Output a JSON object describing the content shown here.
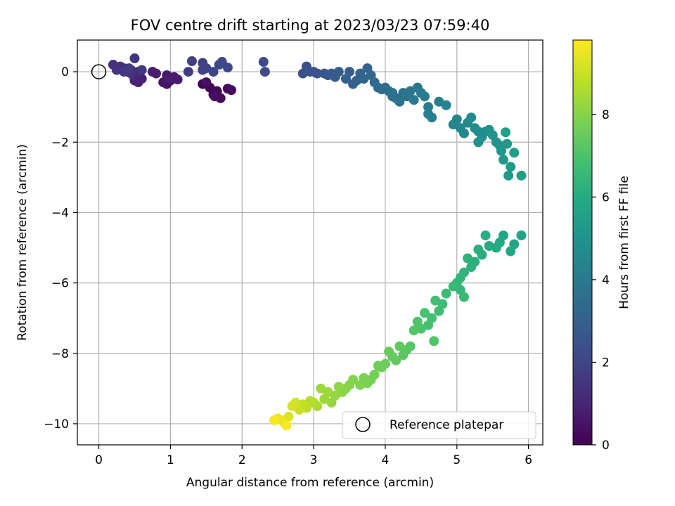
{
  "chart_data": {
    "type": "scatter",
    "title": "FOV centre drift starting at 2023/03/23 07:59:40",
    "xlabel": "Angular distance from reference (arcmin)",
    "ylabel": "Rotation from reference (arcmin)",
    "xlim": [
      -0.3,
      6.2
    ],
    "ylim": [
      -10.6,
      0.9
    ],
    "xticks": [
      "0",
      "1",
      "2",
      "3",
      "4",
      "5",
      "6"
    ],
    "yticks": [
      "0",
      "−2",
      "−4",
      "−6",
      "−8",
      "−10"
    ],
    "grid": true,
    "legend": {
      "position": "lower-right",
      "entries": [
        "Reference platepar"
      ]
    },
    "reference_point": {
      "x": 0,
      "y": 0
    },
    "colorbar": {
      "label": "Hours from first FF file",
      "range": [
        0,
        9.8
      ],
      "ticks": [
        "0",
        "2",
        "4",
        "6",
        "8"
      ],
      "colormap": "viridis"
    },
    "series": [
      {
        "color_by": "hours",
        "points": [
          [
            1.45,
            -0.35,
            0.0
          ],
          [
            1.55,
            -0.45,
            0.05
          ],
          [
            1.6,
            -0.65,
            0.1
          ],
          [
            1.7,
            -0.75,
            0.15
          ],
          [
            1.65,
            -0.55,
            0.2
          ],
          [
            1.8,
            -0.48,
            0.25
          ],
          [
            1.85,
            -0.52,
            0.3
          ],
          [
            1.5,
            -0.3,
            0.35
          ],
          [
            1.62,
            -0.7,
            0.4
          ],
          [
            0.95,
            -0.35,
            0.45
          ],
          [
            1.0,
            -0.25,
            0.5
          ],
          [
            0.9,
            -0.3,
            0.55
          ],
          [
            1.05,
            -0.15,
            0.6
          ],
          [
            0.95,
            -0.1,
            0.65
          ],
          [
            1.1,
            -0.22,
            0.7
          ],
          [
            0.98,
            -0.2,
            0.75
          ],
          [
            0.75,
            0.0,
            0.8
          ],
          [
            0.8,
            -0.05,
            0.85
          ],
          [
            0.55,
            -0.3,
            0.9
          ],
          [
            0.6,
            -0.2,
            0.95
          ],
          [
            0.5,
            -0.25,
            1.0
          ],
          [
            0.48,
            -0.1,
            1.05
          ],
          [
            0.55,
            0.0,
            1.1
          ],
          [
            0.45,
            0.05,
            1.15
          ],
          [
            0.4,
            0.0,
            1.2
          ],
          [
            0.35,
            0.1,
            1.25
          ],
          [
            0.3,
            0.15,
            1.3
          ],
          [
            0.2,
            0.2,
            1.35
          ],
          [
            0.25,
            0.05,
            1.4
          ],
          [
            0.45,
            -0.05,
            1.45
          ],
          [
            0.5,
            0.38,
            1.5
          ],
          [
            0.35,
            0.0,
            1.55
          ],
          [
            0.6,
            0.05,
            1.6
          ],
          [
            0.42,
            0.1,
            1.65
          ],
          [
            1.25,
            0.0,
            1.7
          ],
          [
            1.3,
            0.3,
            1.8
          ],
          [
            1.45,
            0.25,
            1.85
          ],
          [
            1.5,
            0.1,
            1.9
          ],
          [
            1.45,
            0.05,
            1.95
          ],
          [
            1.6,
            0.0,
            2.0
          ],
          [
            1.72,
            0.28,
            2.05
          ],
          [
            1.8,
            0.12,
            2.1
          ],
          [
            1.68,
            0.2,
            2.15
          ],
          [
            2.3,
            0.28,
            2.2
          ],
          [
            2.32,
            0.0,
            2.25
          ],
          [
            2.9,
            0.15,
            2.4
          ],
          [
            2.85,
            -0.05,
            2.45
          ],
          [
            2.95,
            0.0,
            2.5
          ],
          [
            3.0,
            0.0,
            2.55
          ],
          [
            3.05,
            -0.05,
            2.6
          ],
          [
            3.15,
            -0.05,
            2.65
          ],
          [
            3.2,
            -0.1,
            2.7
          ],
          [
            3.25,
            -0.05,
            2.75
          ],
          [
            3.3,
            -0.15,
            2.8
          ],
          [
            3.35,
            0.0,
            2.85
          ],
          [
            3.5,
            0.0,
            2.9
          ],
          [
            3.45,
            -0.2,
            2.95
          ],
          [
            3.55,
            -0.35,
            3.0
          ],
          [
            3.6,
            -0.25,
            3.05
          ],
          [
            3.65,
            -0.05,
            3.1
          ],
          [
            3.75,
            0.1,
            3.15
          ],
          [
            3.8,
            -0.1,
            3.2
          ],
          [
            3.7,
            -0.2,
            3.25
          ],
          [
            3.85,
            -0.3,
            3.3
          ],
          [
            3.9,
            -0.45,
            3.35
          ],
          [
            3.95,
            -0.5,
            3.4
          ],
          [
            4.0,
            -0.45,
            3.45
          ],
          [
            4.05,
            -0.55,
            3.5
          ],
          [
            4.1,
            -0.7,
            3.55
          ],
          [
            4.15,
            -0.75,
            3.6
          ],
          [
            4.2,
            -0.85,
            3.65
          ],
          [
            4.1,
            -0.6,
            3.7
          ],
          [
            4.25,
            -0.6,
            3.75
          ],
          [
            4.3,
            -0.7,
            3.8
          ],
          [
            4.35,
            -0.55,
            3.85
          ],
          [
            4.45,
            -0.45,
            3.9
          ],
          [
            4.5,
            -0.6,
            3.95
          ],
          [
            4.4,
            -0.8,
            4.0
          ],
          [
            4.55,
            -0.7,
            4.05
          ],
          [
            4.6,
            -1.0,
            4.1
          ],
          [
            4.6,
            -1.2,
            4.15
          ],
          [
            4.65,
            -1.3,
            4.2
          ],
          [
            4.75,
            -0.85,
            4.25
          ],
          [
            4.85,
            -0.95,
            4.3
          ],
          [
            4.95,
            -1.5,
            4.4
          ],
          [
            5.0,
            -1.35,
            4.45
          ],
          [
            5.05,
            -1.6,
            4.5
          ],
          [
            5.1,
            -1.75,
            4.55
          ],
          [
            5.15,
            -1.45,
            4.6
          ],
          [
            5.2,
            -1.3,
            4.65
          ],
          [
            5.25,
            -1.6,
            4.7
          ],
          [
            5.3,
            -1.7,
            4.75
          ],
          [
            5.35,
            -1.85,
            4.8
          ],
          [
            5.4,
            -1.7,
            4.85
          ],
          [
            5.3,
            -2.0,
            4.9
          ],
          [
            5.45,
            -1.65,
            4.95
          ],
          [
            5.5,
            -1.8,
            5.0
          ],
          [
            5.55,
            -2.0,
            5.05
          ],
          [
            5.6,
            -2.1,
            5.1
          ],
          [
            5.62,
            -2.25,
            5.15
          ],
          [
            5.65,
            -2.5,
            5.2
          ],
          [
            5.7,
            -2.05,
            5.25
          ],
          [
            5.72,
            -2.95,
            5.3
          ],
          [
            5.75,
            -2.7,
            5.35
          ],
          [
            5.8,
            -2.3,
            5.4
          ],
          [
            5.9,
            -2.95,
            5.45
          ],
          [
            5.68,
            -1.72,
            5.5
          ],
          [
            5.9,
            -4.65,
            5.7
          ],
          [
            5.8,
            -4.9,
            5.75
          ],
          [
            5.75,
            -5.1,
            5.8
          ],
          [
            5.65,
            -4.65,
            5.85
          ],
          [
            5.6,
            -4.85,
            5.9
          ],
          [
            5.55,
            -5.0,
            5.95
          ],
          [
            5.45,
            -4.95,
            6.0
          ],
          [
            5.4,
            -4.65,
            6.05
          ],
          [
            5.35,
            -5.2,
            6.1
          ],
          [
            5.3,
            -5.05,
            6.15
          ],
          [
            5.25,
            -5.4,
            6.2
          ],
          [
            5.2,
            -5.55,
            6.25
          ],
          [
            5.15,
            -5.3,
            6.3
          ],
          [
            5.1,
            -5.7,
            6.35
          ],
          [
            5.05,
            -5.85,
            6.4
          ],
          [
            5.0,
            -6.0,
            6.45
          ],
          [
            5.05,
            -6.2,
            6.5
          ],
          [
            4.95,
            -6.1,
            6.55
          ],
          [
            5.1,
            -6.4,
            6.6
          ],
          [
            4.85,
            -6.3,
            6.65
          ],
          [
            4.8,
            -6.6,
            6.7
          ],
          [
            4.75,
            -6.8,
            6.75
          ],
          [
            4.7,
            -6.5,
            6.8
          ],
          [
            4.65,
            -7.0,
            6.85
          ],
          [
            4.6,
            -7.2,
            6.9
          ],
          [
            4.55,
            -6.85,
            6.95
          ],
          [
            4.5,
            -7.3,
            7.0
          ],
          [
            4.45,
            -7.1,
            7.05
          ],
          [
            4.68,
            -7.65,
            7.1
          ],
          [
            4.4,
            -7.35,
            7.15
          ],
          [
            4.35,
            -7.8,
            7.2
          ],
          [
            4.3,
            -7.9,
            7.25
          ],
          [
            4.25,
            -8.05,
            7.3
          ],
          [
            4.2,
            -7.8,
            7.35
          ],
          [
            4.15,
            -8.2,
            7.4
          ],
          [
            4.1,
            -8.1,
            7.45
          ],
          [
            4.05,
            -7.95,
            7.5
          ],
          [
            4.0,
            -8.3,
            7.55
          ],
          [
            3.95,
            -8.4,
            7.6
          ],
          [
            3.9,
            -8.35,
            7.65
          ],
          [
            3.85,
            -8.6,
            7.7
          ],
          [
            3.8,
            -8.75,
            7.75
          ],
          [
            3.75,
            -8.85,
            7.8
          ],
          [
            3.7,
            -8.7,
            7.85
          ],
          [
            3.65,
            -8.9,
            7.9
          ],
          [
            3.55,
            -8.75,
            7.95
          ],
          [
            3.5,
            -8.9,
            8.0
          ],
          [
            3.45,
            -9.0,
            8.05
          ],
          [
            3.4,
            -9.1,
            8.1
          ],
          [
            3.35,
            -8.95,
            8.15
          ],
          [
            3.3,
            -9.2,
            8.2
          ],
          [
            3.25,
            -9.4,
            8.25
          ],
          [
            3.2,
            -9.1,
            8.3
          ],
          [
            3.15,
            -9.3,
            8.35
          ],
          [
            3.1,
            -9.0,
            8.4
          ],
          [
            3.05,
            -9.5,
            8.5
          ],
          [
            3.0,
            -9.4,
            8.6
          ],
          [
            2.95,
            -9.35,
            8.7
          ],
          [
            2.9,
            -9.55,
            8.8
          ],
          [
            2.85,
            -9.45,
            8.9
          ],
          [
            2.8,
            -9.6,
            9.0
          ],
          [
            2.75,
            -9.4,
            9.1
          ],
          [
            2.7,
            -9.5,
            9.2
          ],
          [
            2.65,
            -9.8,
            9.3
          ],
          [
            2.6,
            -10.0,
            9.4
          ],
          [
            2.55,
            -9.9,
            9.5
          ],
          [
            2.5,
            -9.85,
            9.6
          ],
          [
            2.45,
            -9.9,
            9.7
          ],
          [
            2.62,
            -10.05,
            9.75
          ]
        ]
      }
    ]
  }
}
